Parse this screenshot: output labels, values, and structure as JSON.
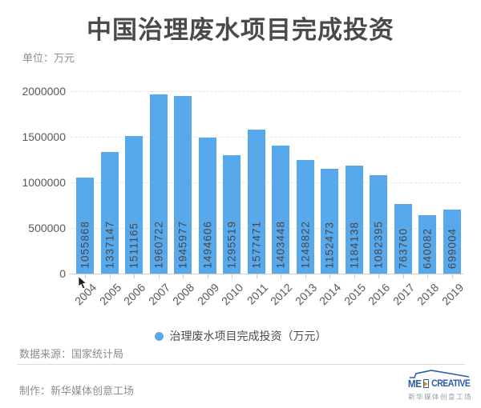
{
  "title": "中国治理废水项目完成投资",
  "unit_label": "单位：万元",
  "chart_data": {
    "type": "bar",
    "title": "中国治理废水项目完成投资",
    "unit": "万元",
    "categories": [
      "2004",
      "2005",
      "2006",
      "2007",
      "2008",
      "2009",
      "2010",
      "2011",
      "2012",
      "2013",
      "2014",
      "2015",
      "2016",
      "2017",
      "2018",
      "2019"
    ],
    "values": [
      1055868,
      1337147,
      1511165,
      1960722,
      1945977,
      1494606,
      1295519,
      1577471,
      1403448,
      1248822,
      1152473,
      1184138,
      1082395,
      763760,
      640082,
      699004
    ],
    "series_name": "治理废水项目完成投资（万元）",
    "ylim": [
      0,
      2000000
    ],
    "yticks": [
      0,
      500000,
      1000000,
      1500000,
      2000000
    ],
    "xlabel": "",
    "ylabel": "万元",
    "grid": "horizontal-dashed",
    "legend_position": "bottom",
    "bar_color": "#58a9ec",
    "value_label_style": "vertical-inside-bar"
  },
  "legend": {
    "label": "治理废水项目完成投资（万元）",
    "marker_color": "#58a9ec"
  },
  "footer": {
    "source": "数据来源：国家统计局",
    "credit": "制作：新华媒体创意工场"
  },
  "logo": {
    "text_left": "ME",
    "text_right": "CREATIVE",
    "subtext": "新华媒体创意工场",
    "blue": "#2b5ca8",
    "orange": "#f18a00"
  },
  "colors": {
    "title": "#4a4a4a",
    "axis_text": "#595959",
    "bar": "#58a9ec",
    "bar_value_text": "#474747",
    "muted_text": "#8c8c8c",
    "gridline": "#e4e4e4",
    "axis_line": "#cccccc",
    "background": "#ffffff"
  }
}
